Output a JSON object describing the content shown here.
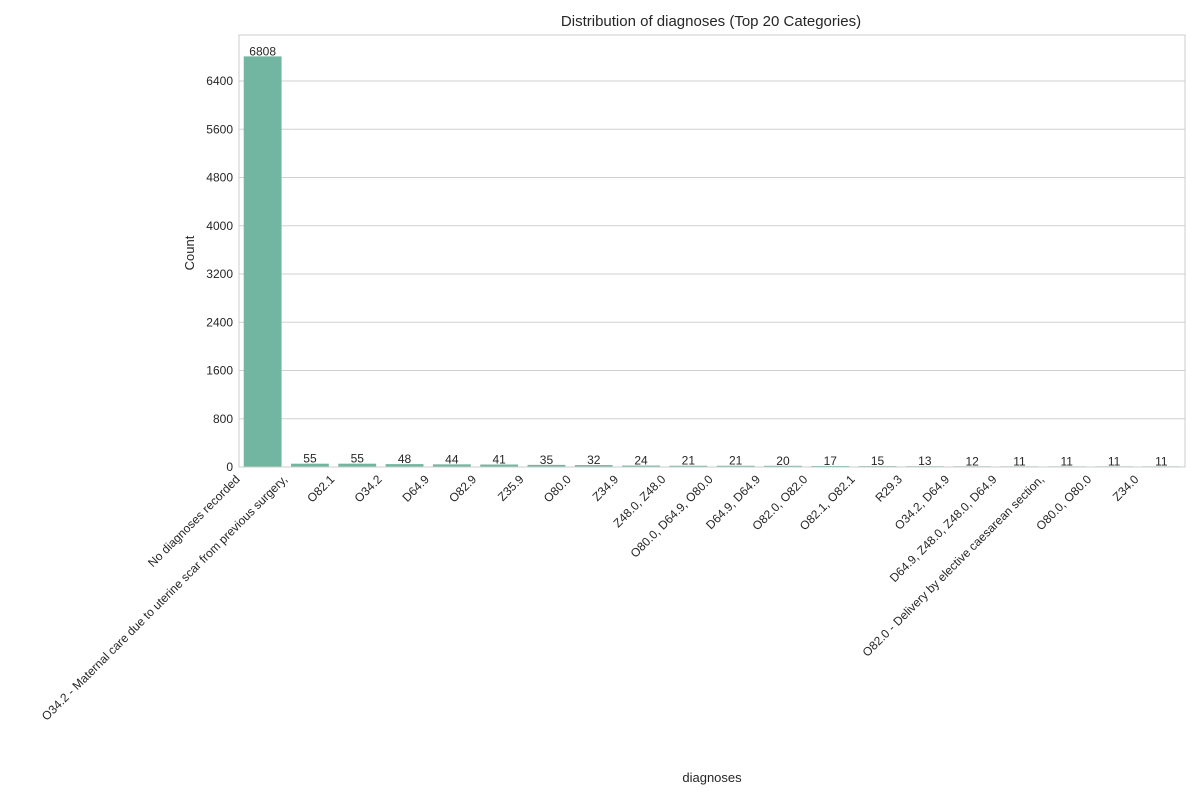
{
  "chart_data": {
    "type": "bar",
    "title": "Distribution of diagnoses (Top 20 Categories)",
    "xlabel": "diagnoses",
    "ylabel": "Count",
    "ylim": [
      0,
      7000
    ],
    "yticks": [
      0,
      800,
      1600,
      2400,
      3200,
      4000,
      4800,
      5600,
      6400
    ],
    "grid": "horizontal",
    "bar_color": "#72b6a1",
    "categories": [
      "No diagnoses recorded",
      "O34.2 - Maternal care due to uterine scar from previous surgery,",
      "O82.1",
      "O34.2",
      "D64.9",
      "O82.9",
      "Z35.9",
      "O80.0",
      "Z34.9",
      "Z48.0, Z48.0",
      "O80.0, D64.9, O80.0",
      "D64.9, D64.9",
      "O82.0, O82.0",
      "O82.1, O82.1",
      "R29.3",
      "O34.2, D64.9",
      "D64.9, Z48.0, Z48.0, D64.9",
      "O82.0 - Delivery by elective caesarean section,",
      "O80.0, O80.0",
      "Z34.0"
    ],
    "values": [
      6808,
      55,
      55,
      48,
      44,
      41,
      35,
      32,
      24,
      21,
      21,
      20,
      17,
      15,
      13,
      12,
      11,
      11,
      11,
      11
    ]
  }
}
